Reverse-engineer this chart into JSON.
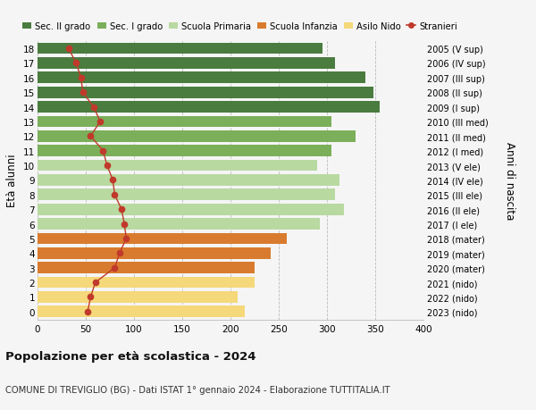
{
  "ages": [
    18,
    17,
    16,
    15,
    14,
    13,
    12,
    11,
    10,
    9,
    8,
    7,
    6,
    5,
    4,
    3,
    2,
    1,
    0
  ],
  "years_labels": [
    "2005 (V sup)",
    "2006 (IV sup)",
    "2007 (III sup)",
    "2008 (II sup)",
    "2009 (I sup)",
    "2010 (III med)",
    "2011 (II med)",
    "2012 (I med)",
    "2013 (V ele)",
    "2014 (IV ele)",
    "2015 (III ele)",
    "2016 (II ele)",
    "2017 (I ele)",
    "2018 (mater)",
    "2019 (mater)",
    "2020 (mater)",
    "2021 (nido)",
    "2022 (nido)",
    "2023 (nido)"
  ],
  "bar_values": [
    295,
    308,
    340,
    348,
    355,
    305,
    330,
    305,
    290,
    313,
    308,
    318,
    293,
    258,
    242,
    225,
    225,
    207,
    215
  ],
  "stranieri_values": [
    32,
    40,
    45,
    47,
    58,
    65,
    55,
    68,
    72,
    78,
    80,
    87,
    90,
    92,
    85,
    80,
    60,
    55,
    52
  ],
  "bar_colors": [
    "#4a7c3f",
    "#4a7c3f",
    "#4a7c3f",
    "#4a7c3f",
    "#4a7c3f",
    "#7baf5a",
    "#7baf5a",
    "#7baf5a",
    "#b8d9a0",
    "#b8d9a0",
    "#b8d9a0",
    "#b8d9a0",
    "#b8d9a0",
    "#d97b2e",
    "#d97b2e",
    "#d97b2e",
    "#f5d87a",
    "#f5d87a",
    "#f5d87a"
  ],
  "legend_colors": [
    "#4a7c3f",
    "#7baf5a",
    "#b8d9a0",
    "#d97b2e",
    "#f5d87a",
    "#c0392b"
  ],
  "legend_labels": [
    "Sec. II grado",
    "Sec. I grado",
    "Scuola Primaria",
    "Scuola Infanzia",
    "Asilo Nido",
    "Stranieri"
  ],
  "stranieri_color": "#c0392b",
  "title": "Popolazione per età scolastica - 2024",
  "subtitle": "COMUNE DI TREVIGLIO (BG) - Dati ISTAT 1° gennaio 2024 - Elaborazione TUTTITALIA.IT",
  "ylabel": "Età alunni",
  "y2label": "Anni di nascita",
  "xlabel_vals": [
    0,
    50,
    100,
    150,
    200,
    250,
    300,
    350,
    400
  ],
  "bg_color": "#f5f5f5",
  "bar_height": 0.78,
  "xlim": [
    0,
    400
  ]
}
